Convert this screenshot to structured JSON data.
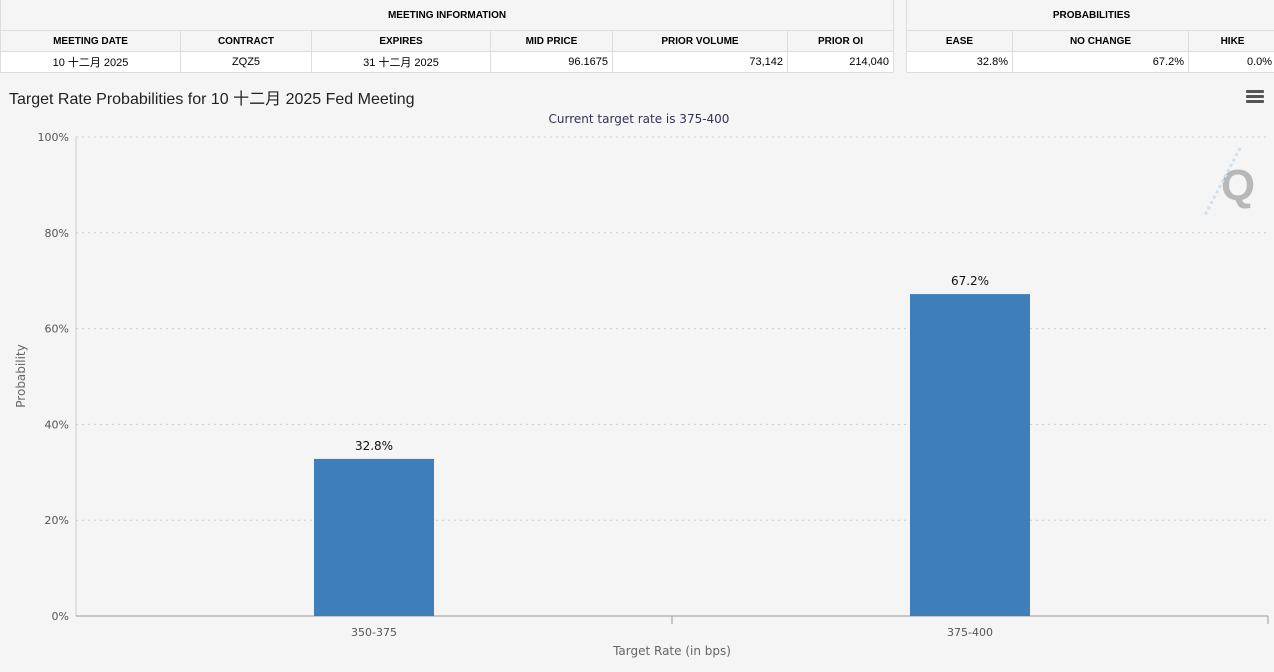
{
  "meeting_info": {
    "header": "MEETING INFORMATION",
    "columns": [
      "MEETING DATE",
      "CONTRACT",
      "EXPIRES",
      "MID PRICE",
      "PRIOR VOLUME",
      "PRIOR OI"
    ],
    "row": [
      "10 十二月 2025",
      "ZQZ5",
      "31 十二月 2025",
      "96.1675",
      "73,142",
      "214,040"
    ]
  },
  "probabilities": {
    "header": "PROBABILITIES",
    "columns": [
      "EASE",
      "NO CHANGE",
      "HIKE"
    ],
    "row": [
      "32.8%",
      "67.2%",
      "0.0%"
    ]
  },
  "chart_title": "Target Rate Probabilities for 10 十二月 2025 Fed Meeting",
  "menu_icon": "hamburger-menu-icon",
  "chart_data": {
    "type": "bar",
    "subtitle": "Current target rate is 375-400",
    "categories": [
      "350-375",
      "375-400"
    ],
    "values": [
      32.8,
      67.2
    ],
    "data_labels": [
      "32.8%",
      "67.2%"
    ],
    "xlabel": "Target Rate (in bps)",
    "ylabel": "Probability",
    "ylim": [
      0,
      100
    ],
    "yticks": [
      "0%",
      "20%",
      "40%",
      "60%",
      "80%",
      "100%"
    ],
    "grid": true,
    "bar_color": "#3d7ebb"
  }
}
